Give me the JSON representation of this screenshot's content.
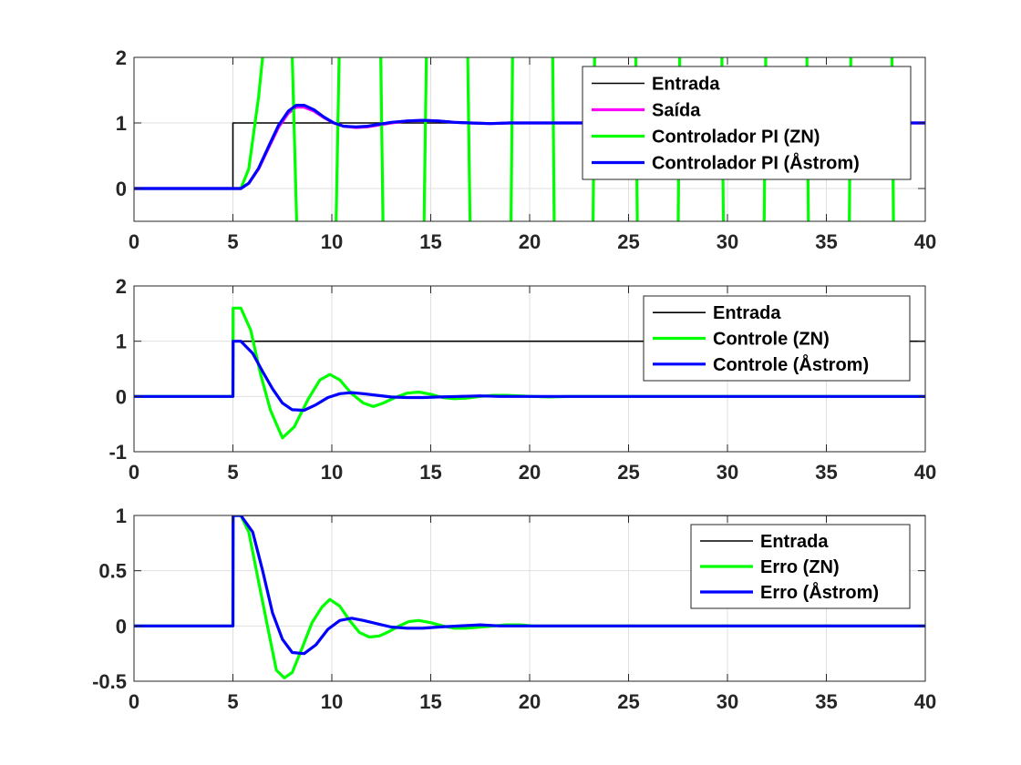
{
  "chart_data": [
    {
      "type": "line",
      "title": "",
      "xlabel": "",
      "ylabel": "",
      "xlim": [
        0,
        40
      ],
      "ylim": [
        -0.5,
        2
      ],
      "xticks": [
        "0",
        "5",
        "10",
        "15",
        "20",
        "25",
        "30",
        "35",
        "40"
      ],
      "yticks": [
        "0",
        "1",
        "2"
      ],
      "ytick_values": [
        0,
        1,
        2
      ],
      "grid": true,
      "legend_position": "top-right",
      "series": [
        {
          "name": "Entrada",
          "color": "#000000",
          "x": [
            0,
            5,
            5,
            40
          ],
          "y": [
            0,
            0,
            1,
            1
          ]
        },
        {
          "name": "Saída",
          "color": "#ff00ff",
          "x": [
            0,
            5.4,
            5.8,
            6.3,
            6.8,
            7.3,
            7.8,
            8.2,
            8.6,
            9.1,
            9.6,
            10.1,
            10.6,
            11.2,
            11.8,
            12.4,
            13.0,
            13.8,
            14.6,
            15.4,
            16.2,
            17.0,
            18.0,
            19.0,
            20.0,
            22.0,
            25.0,
            30.0,
            40.0
          ],
          "y": [
            0,
            0,
            0.08,
            0.3,
            0.62,
            0.93,
            1.15,
            1.24,
            1.24,
            1.18,
            1.08,
            1.0,
            0.95,
            0.93,
            0.94,
            0.97,
            1.0,
            1.03,
            1.04,
            1.03,
            1.01,
            1.0,
            0.99,
            1.0,
            1.0,
            1.0,
            1.0,
            1.0,
            1.0
          ]
        },
        {
          "name": "Controlador PI (ZN)",
          "color": "#00ff00",
          "x": [
            0,
            5.4,
            5.8,
            6.3,
            6.7,
            7.5,
            8.0,
            8.25,
            8.6,
            10.2,
            10.4,
            10.6,
            12.45,
            12.6,
            12.75,
            14.65,
            14.8,
            14.95,
            16.85,
            17.0,
            17.15,
            19.05,
            19.15,
            19.25,
            21.15,
            21.25,
            21.35,
            23.2,
            23.3,
            23.4,
            25.35,
            25.45,
            25.55,
            27.5,
            27.6,
            27.7,
            29.7,
            29.8,
            29.9,
            31.85,
            31.95,
            32.05,
            34.0,
            34.1,
            34.2,
            36.15,
            36.25,
            36.35,
            38.3,
            38.4,
            38.5,
            40.0
          ],
          "y": [
            0,
            0,
            0.3,
            1.4,
            2.6,
            2.9,
            2.0,
            -0.8,
            -0.8,
            -0.8,
            2.5,
            2.5,
            2.5,
            -0.8,
            -0.8,
            -0.8,
            2.5,
            2.5,
            2.5,
            -0.8,
            -0.8,
            -0.8,
            2.5,
            2.5,
            2.5,
            -0.8,
            -0.8,
            -0.8,
            2.5,
            2.5,
            2.5,
            -0.8,
            -0.8,
            -0.8,
            2.5,
            2.5,
            2.5,
            -0.8,
            -0.8,
            -0.8,
            2.5,
            2.5,
            2.5,
            -0.8,
            -0.8,
            -0.8,
            2.5,
            2.5,
            2.5,
            -0.8,
            -0.8,
            -0.8
          ]
        },
        {
          "name": "Controlador PI (Åstrom)",
          "color": "#0000ff",
          "x": [
            0,
            5.4,
            5.8,
            6.3,
            6.8,
            7.3,
            7.8,
            8.2,
            8.6,
            9.1,
            9.6,
            10.1,
            10.6,
            11.2,
            11.8,
            12.4,
            13.0,
            13.8,
            14.6,
            15.4,
            16.2,
            17.0,
            18.0,
            19.0,
            20.0,
            22.0,
            25.0,
            30.0,
            40.0
          ],
          "y": [
            0,
            0,
            0.08,
            0.31,
            0.64,
            0.96,
            1.18,
            1.27,
            1.27,
            1.2,
            1.09,
            1.0,
            0.95,
            0.94,
            0.95,
            0.98,
            1.01,
            1.03,
            1.04,
            1.03,
            1.01,
            1.0,
            0.99,
            1.0,
            1.0,
            1.0,
            1.0,
            1.0,
            1.0
          ]
        }
      ]
    },
    {
      "type": "line",
      "title": "",
      "xlabel": "",
      "ylabel": "",
      "xlim": [
        0,
        40
      ],
      "ylim": [
        -1,
        2
      ],
      "xticks": [
        "0",
        "5",
        "10",
        "15",
        "20",
        "25",
        "30",
        "35",
        "40"
      ],
      "yticks": [
        "-1",
        "0",
        "1",
        "2"
      ],
      "ytick_values": [
        -1,
        0,
        1,
        2
      ],
      "grid": true,
      "legend_position": "top-right",
      "series": [
        {
          "name": "Entrada",
          "color": "#000000",
          "x": [
            0,
            5,
            5,
            40
          ],
          "y": [
            0,
            0,
            1,
            1
          ]
        },
        {
          "name": "Controle (ZN)",
          "color": "#00ff00",
          "x": [
            0,
            5,
            5.01,
            5.4,
            5.9,
            6.4,
            6.9,
            7.5,
            8.1,
            8.8,
            9.4,
            9.9,
            10.4,
            11.0,
            11.6,
            12.1,
            12.6,
            13.2,
            13.8,
            14.4,
            15.0,
            15.6,
            16.2,
            16.8,
            17.5,
            18.2,
            18.8,
            19.5,
            20.2,
            21.0,
            22.0,
            25.0,
            30.0,
            40.0
          ],
          "y": [
            0,
            0,
            1.6,
            1.6,
            1.2,
            0.4,
            -0.25,
            -0.75,
            -0.55,
            -0.05,
            0.3,
            0.4,
            0.3,
            0.05,
            -0.12,
            -0.18,
            -0.12,
            -0.02,
            0.06,
            0.08,
            0.04,
            -0.02,
            -0.04,
            -0.03,
            0.0,
            0.02,
            0.02,
            0.01,
            0.0,
            -0.01,
            0.0,
            0.0,
            0.0,
            0.0
          ]
        },
        {
          "name": "Controle (Åstrom)",
          "color": "#0000ff",
          "x": [
            0,
            5,
            5.01,
            5.4,
            6.0,
            6.5,
            7.0,
            7.5,
            8.0,
            8.6,
            9.2,
            9.8,
            10.4,
            11.0,
            11.6,
            12.3,
            13.0,
            13.8,
            14.6,
            15.4,
            16.4,
            17.5,
            18.5,
            20.0,
            22.0,
            25.0,
            30.0,
            40.0
          ],
          "y": [
            0,
            0,
            1.0,
            1.0,
            0.78,
            0.45,
            0.14,
            -0.12,
            -0.24,
            -0.25,
            -0.15,
            -0.02,
            0.05,
            0.07,
            0.05,
            0.02,
            -0.01,
            -0.02,
            -0.02,
            -0.01,
            0.0,
            0.01,
            0.0,
            0.0,
            0.0,
            0.0,
            0.0,
            0.0
          ]
        }
      ]
    },
    {
      "type": "line",
      "title": "",
      "xlabel": "",
      "ylabel": "",
      "xlim": [
        0,
        40
      ],
      "ylim": [
        -0.5,
        1
      ],
      "xticks": [
        "0",
        "5",
        "10",
        "15",
        "20",
        "25",
        "30",
        "35",
        "40"
      ],
      "yticks": [
        "-0.5",
        "0",
        "0.5",
        "1"
      ],
      "ytick_values": [
        -0.5,
        0,
        0.5,
        1
      ],
      "grid": true,
      "legend_position": "top-right",
      "series": [
        {
          "name": "Entrada",
          "color": "#000000",
          "x": [
            0,
            5,
            5,
            40
          ],
          "y": [
            0,
            0,
            1,
            1
          ]
        },
        {
          "name": "Erro (ZN)",
          "color": "#00ff00",
          "x": [
            0,
            5,
            5.01,
            5.4,
            5.8,
            6.3,
            6.8,
            7.2,
            7.6,
            8.0,
            8.5,
            9.0,
            9.5,
            9.9,
            10.4,
            10.9,
            11.4,
            11.9,
            12.4,
            12.9,
            13.4,
            13.9,
            14.4,
            15.0,
            15.6,
            16.2,
            16.8,
            17.5,
            18.2,
            18.8,
            19.5,
            20.2,
            21.0,
            22.0,
            25.0,
            30.0,
            40.0
          ],
          "y": [
            0,
            0,
            1.0,
            1.0,
            0.85,
            0.4,
            -0.05,
            -0.4,
            -0.47,
            -0.42,
            -0.2,
            0.03,
            0.17,
            0.24,
            0.18,
            0.05,
            -0.06,
            -0.1,
            -0.09,
            -0.05,
            0.0,
            0.04,
            0.05,
            0.03,
            0.0,
            -0.02,
            -0.02,
            -0.01,
            0.0,
            0.01,
            0.01,
            0.0,
            0.0,
            0.0,
            0.0,
            0.0,
            0.0
          ]
        },
        {
          "name": "Erro (Åstrom)",
          "color": "#0000ff",
          "x": [
            0,
            5,
            5.01,
            5.4,
            6.0,
            6.5,
            7.0,
            7.5,
            8.0,
            8.6,
            9.2,
            9.8,
            10.4,
            11.0,
            11.6,
            12.3,
            13.0,
            13.8,
            14.6,
            15.4,
            16.4,
            17.5,
            18.5,
            20.0,
            22.0,
            25.0,
            30.0,
            40.0
          ],
          "y": [
            0,
            0,
            1.0,
            1.0,
            0.85,
            0.5,
            0.12,
            -0.12,
            -0.24,
            -0.25,
            -0.17,
            -0.03,
            0.05,
            0.07,
            0.05,
            0.02,
            -0.01,
            -0.02,
            -0.02,
            -0.01,
            0.0,
            0.01,
            0.0,
            0.0,
            0.0,
            0.0,
            0.0,
            0.0
          ]
        }
      ]
    }
  ]
}
